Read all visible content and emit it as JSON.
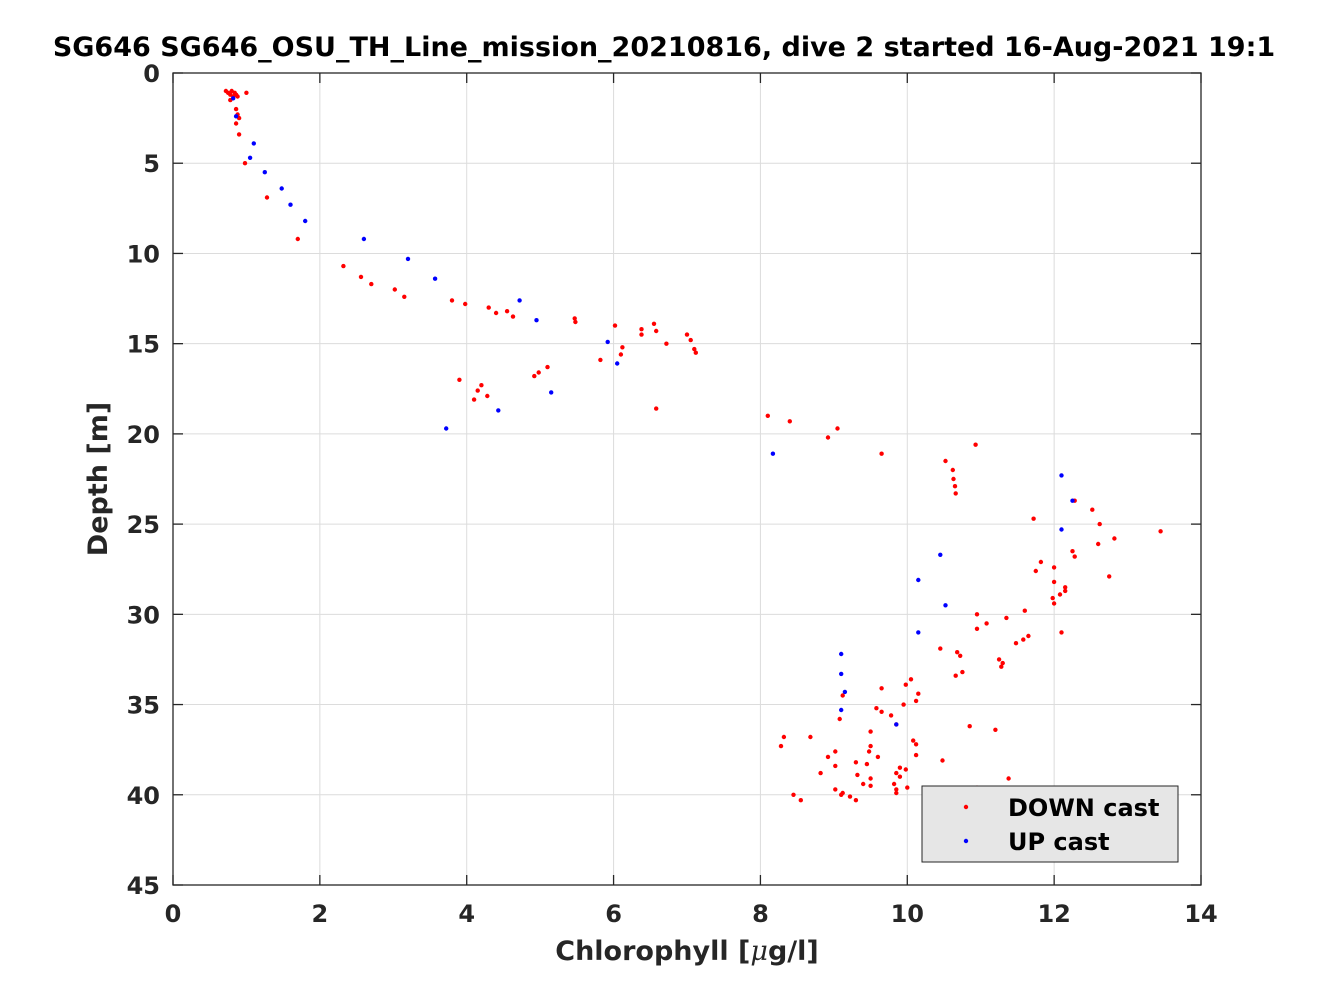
{
  "chart_data": {
    "type": "scatter",
    "title": "SG646 SG646_OSU_TH_Line_mission_20210816, dive 2 started 16-Aug-2021 19:1",
    "xlabel_prefix": "Chlorophyll [",
    "xlabel_mu": "μ",
    "xlabel_suffix": "g/l]",
    "ylabel": "Depth [m]",
    "xlim": [
      0,
      14
    ],
    "ylim": [
      0,
      45
    ],
    "y_reversed": true,
    "grid": true,
    "x_ticks": [
      "0",
      "2",
      "4",
      "6",
      "8",
      "10",
      "12",
      "14"
    ],
    "y_ticks": [
      "0",
      "5",
      "10",
      "15",
      "20",
      "25",
      "30",
      "35",
      "40",
      "45"
    ],
    "legend_position": "bottom-right",
    "series": [
      {
        "name": "DOWN cast",
        "color": "#ff0000",
        "points": [
          [
            0.72,
            1.0
          ],
          [
            0.75,
            1.1
          ],
          [
            0.78,
            1.2
          ],
          [
            0.8,
            1.0
          ],
          [
            0.82,
            1.3
          ],
          [
            0.84,
            1.1
          ],
          [
            0.86,
            1.2
          ],
          [
            0.88,
            1.3
          ],
          [
            0.78,
            1.5
          ],
          [
            1.0,
            1.1
          ],
          [
            0.86,
            2.0
          ],
          [
            0.88,
            2.3
          ],
          [
            0.9,
            2.5
          ],
          [
            0.86,
            2.8
          ],
          [
            0.9,
            3.4
          ],
          [
            0.98,
            5.0
          ],
          [
            1.28,
            6.9
          ],
          [
            1.7,
            9.2
          ],
          [
            2.32,
            10.7
          ],
          [
            2.56,
            11.3
          ],
          [
            2.7,
            11.7
          ],
          [
            3.02,
            12.0
          ],
          [
            3.15,
            12.4
          ],
          [
            3.8,
            12.6
          ],
          [
            3.98,
            12.8
          ],
          [
            4.3,
            13.0
          ],
          [
            4.4,
            13.3
          ],
          [
            4.55,
            13.2
          ],
          [
            4.63,
            13.5
          ],
          [
            5.47,
            13.6
          ],
          [
            5.48,
            13.8
          ],
          [
            6.02,
            14.0
          ],
          [
            6.38,
            14.2
          ],
          [
            6.38,
            14.5
          ],
          [
            6.55,
            13.9
          ],
          [
            6.58,
            14.3
          ],
          [
            6.72,
            15.0
          ],
          [
            7.0,
            14.5
          ],
          [
            7.05,
            14.8
          ],
          [
            7.1,
            15.3
          ],
          [
            7.12,
            15.5
          ],
          [
            6.12,
            15.2
          ],
          [
            6.1,
            15.6
          ],
          [
            5.82,
            15.9
          ],
          [
            3.9,
            17.0
          ],
          [
            4.2,
            17.3
          ],
          [
            4.15,
            17.6
          ],
          [
            4.28,
            17.9
          ],
          [
            4.1,
            18.1
          ],
          [
            4.92,
            16.8
          ],
          [
            4.98,
            16.6
          ],
          [
            5.1,
            16.3
          ],
          [
            6.58,
            18.6
          ],
          [
            8.1,
            19.0
          ],
          [
            8.4,
            19.3
          ],
          [
            9.05,
            19.7
          ],
          [
            8.92,
            20.2
          ],
          [
            9.65,
            21.1
          ],
          [
            10.93,
            20.6
          ],
          [
            10.52,
            21.5
          ],
          [
            10.62,
            22.0
          ],
          [
            10.63,
            22.5
          ],
          [
            10.65,
            22.9
          ],
          [
            10.66,
            23.3
          ],
          [
            12.28,
            23.7
          ],
          [
            12.52,
            24.2
          ],
          [
            11.72,
            24.7
          ],
          [
            12.62,
            25.0
          ],
          [
            13.45,
            25.4
          ],
          [
            12.82,
            25.8
          ],
          [
            12.6,
            26.1
          ],
          [
            12.25,
            26.5
          ],
          [
            12.28,
            26.8
          ],
          [
            11.82,
            27.1
          ],
          [
            12.0,
            27.4
          ],
          [
            11.75,
            27.6
          ],
          [
            12.75,
            27.9
          ],
          [
            12.0,
            28.2
          ],
          [
            12.15,
            28.5
          ],
          [
            12.15,
            28.7
          ],
          [
            12.08,
            28.9
          ],
          [
            11.98,
            29.1
          ],
          [
            12.0,
            29.4
          ],
          [
            11.6,
            29.8
          ],
          [
            10.95,
            30.0
          ],
          [
            11.35,
            30.2
          ],
          [
            11.08,
            30.5
          ],
          [
            10.95,
            30.8
          ],
          [
            12.1,
            31.0
          ],
          [
            11.65,
            31.2
          ],
          [
            11.58,
            31.4
          ],
          [
            11.48,
            31.6
          ],
          [
            10.45,
            31.9
          ],
          [
            10.68,
            32.1
          ],
          [
            10.72,
            32.3
          ],
          [
            11.25,
            32.5
          ],
          [
            11.3,
            32.7
          ],
          [
            11.28,
            32.9
          ],
          [
            10.75,
            33.2
          ],
          [
            10.66,
            33.4
          ],
          [
            10.05,
            33.6
          ],
          [
            9.98,
            33.9
          ],
          [
            9.65,
            34.1
          ],
          [
            9.12,
            34.5
          ],
          [
            10.15,
            34.4
          ],
          [
            10.12,
            34.8
          ],
          [
            9.95,
            35.0
          ],
          [
            9.58,
            35.2
          ],
          [
            9.65,
            35.4
          ],
          [
            9.78,
            35.6
          ],
          [
            9.08,
            35.8
          ],
          [
            9.85,
            36.1
          ],
          [
            10.85,
            36.2
          ],
          [
            11.2,
            36.4
          ],
          [
            9.5,
            36.5
          ],
          [
            8.32,
            36.8
          ],
          [
            8.68,
            36.8
          ],
          [
            10.08,
            37.0
          ],
          [
            10.12,
            37.2
          ],
          [
            8.28,
            37.3
          ],
          [
            9.5,
            37.3
          ],
          [
            9.48,
            37.6
          ],
          [
            9.02,
            37.6
          ],
          [
            8.92,
            37.9
          ],
          [
            9.6,
            37.9
          ],
          [
            10.12,
            37.8
          ],
          [
            9.3,
            38.2
          ],
          [
            9.45,
            38.3
          ],
          [
            9.02,
            38.4
          ],
          [
            10.48,
            38.1
          ],
          [
            9.9,
            38.5
          ],
          [
            9.98,
            38.6
          ],
          [
            8.82,
            38.8
          ],
          [
            9.32,
            38.9
          ],
          [
            9.85,
            38.8
          ],
          [
            9.5,
            39.1
          ],
          [
            9.9,
            39.0
          ],
          [
            11.38,
            39.1
          ],
          [
            9.4,
            39.4
          ],
          [
            9.5,
            39.5
          ],
          [
            9.82,
            39.4
          ],
          [
            10.0,
            39.6
          ],
          [
            9.85,
            39.7
          ],
          [
            9.02,
            39.7
          ],
          [
            9.12,
            39.9
          ],
          [
            9.1,
            40.0
          ],
          [
            9.22,
            40.1
          ],
          [
            9.3,
            40.3
          ],
          [
            9.85,
            39.9
          ],
          [
            10.4,
            40.0
          ],
          [
            8.45,
            40.0
          ],
          [
            8.55,
            40.3
          ],
          [
            10.95,
            39.6
          ]
        ]
      },
      {
        "name": "UP cast",
        "color": "#0000ff",
        "points": [
          [
            0.82,
            1.4
          ],
          [
            0.86,
            2.4
          ],
          [
            1.1,
            3.9
          ],
          [
            1.05,
            4.7
          ],
          [
            1.25,
            5.5
          ],
          [
            1.48,
            6.4
          ],
          [
            1.6,
            7.3
          ],
          [
            1.8,
            8.2
          ],
          [
            2.6,
            9.2
          ],
          [
            3.2,
            10.3
          ],
          [
            3.57,
            11.4
          ],
          [
            4.72,
            12.6
          ],
          [
            4.95,
            13.7
          ],
          [
            5.92,
            14.9
          ],
          [
            6.05,
            16.1
          ],
          [
            5.15,
            17.7
          ],
          [
            4.43,
            18.7
          ],
          [
            3.72,
            19.7
          ],
          [
            8.17,
            21.1
          ],
          [
            12.1,
            22.3
          ],
          [
            12.25,
            23.7
          ],
          [
            12.1,
            25.3
          ],
          [
            10.45,
            26.7
          ],
          [
            10.15,
            28.1
          ],
          [
            10.52,
            29.5
          ],
          [
            10.15,
            31.0
          ],
          [
            9.1,
            32.2
          ],
          [
            9.1,
            33.3
          ],
          [
            9.15,
            34.3
          ],
          [
            9.1,
            35.3
          ],
          [
            9.85,
            36.1
          ]
        ]
      }
    ]
  }
}
